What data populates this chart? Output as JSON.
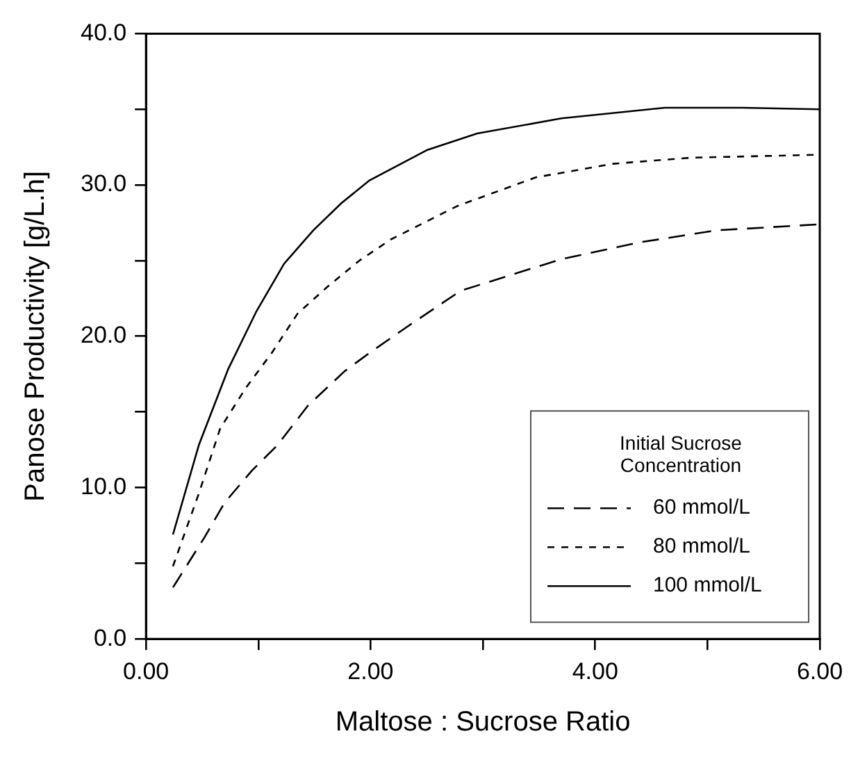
{
  "chart_data": {
    "type": "line",
    "xlabel": "Maltose : Sucrose Ratio",
    "ylabel": "Panose Productivity [g/L.h]",
    "legend_title": "Initial Sucrose Concentration",
    "legend": "bottom right",
    "grid": false,
    "marker": "none",
    "xlim": [
      0,
      6
    ],
    "ylim": [
      0,
      40
    ],
    "xticks": [
      {
        "value": 0,
        "label": "0.00"
      },
      {
        "value": 1,
        "label": null
      },
      {
        "value": 2,
        "label": "2.00"
      },
      {
        "value": 3,
        "label": null
      },
      {
        "value": 4,
        "label": "4.00"
      },
      {
        "value": 5,
        "label": null
      },
      {
        "value": 6,
        "label": "6.00"
      }
    ],
    "yticks": [
      {
        "value": 0,
        "label": "0.0"
      },
      {
        "value": 5,
        "label": null
      },
      {
        "value": 10,
        "label": "10.0"
      },
      {
        "value": 15,
        "label": null
      },
      {
        "value": 20,
        "label": "20.0"
      },
      {
        "value": 25,
        "label": null
      },
      {
        "value": 30,
        "label": "30.0"
      },
      {
        "value": 35,
        "label": null
      },
      {
        "value": 40,
        "label": "40.0"
      }
    ],
    "series": [
      {
        "name": "60 mmol/L",
        "color": "#000000",
        "line_style": "dashed",
        "x": [
          0.24,
          0.52,
          0.7,
          0.94,
          1.17,
          1.44,
          1.77,
          1.99,
          2.32,
          2.8,
          3.7,
          4.39,
          5.08,
          6.0
        ],
        "values": [
          3.4,
          6.7,
          9.0,
          11.1,
          12.8,
          15.4,
          17.7,
          18.9,
          20.6,
          23.0,
          25.1,
          26.2,
          27.0,
          27.4
        ]
      },
      {
        "name": "80 mmol/L",
        "color": "#000000",
        "line_style": "dotted",
        "x": [
          0.24,
          0.47,
          0.66,
          0.89,
          1.12,
          1.35,
          1.62,
          1.9,
          2.18,
          2.77,
          3.47,
          4.16,
          4.85,
          6.0
        ],
        "values": [
          4.8,
          9.6,
          13.9,
          16.6,
          18.9,
          21.5,
          23.3,
          25.0,
          26.4,
          28.6,
          30.5,
          31.4,
          31.8,
          32.0
        ]
      },
      {
        "name": "100 mmol/L",
        "color": "#000000",
        "line_style": "solid",
        "x": [
          0.24,
          0.47,
          0.73,
          0.98,
          1.23,
          1.49,
          1.74,
          1.99,
          2.5,
          2.95,
          3.7,
          4.62,
          5.31,
          6.0
        ],
        "values": [
          6.9,
          12.8,
          17.8,
          21.6,
          24.8,
          27.0,
          28.8,
          30.3,
          32.3,
          33.4,
          34.4,
          35.1,
          35.1,
          35.0
        ]
      }
    ]
  }
}
